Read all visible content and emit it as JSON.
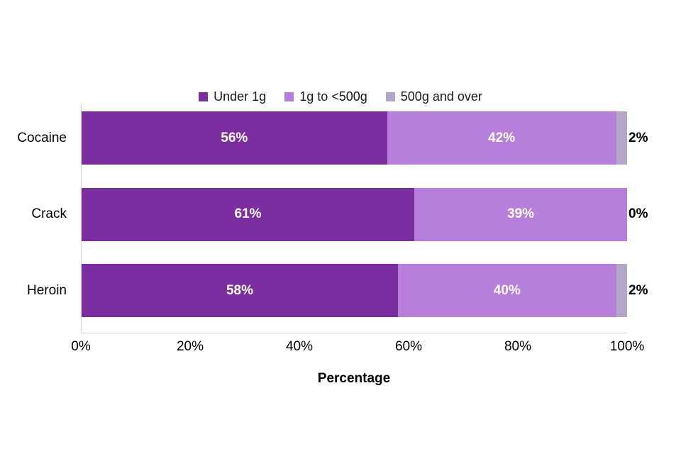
{
  "chart_data": {
    "type": "bar",
    "orientation": "horizontal",
    "stacked": true,
    "title": "",
    "categories": [
      "Cocaine",
      "Crack",
      "Heroin"
    ],
    "series": [
      {
        "name": "Under 1g",
        "color": "#7C2DA0",
        "values": [
          56,
          61,
          58
        ]
      },
      {
        "name": "1g to <500g",
        "color": "#B77FDB",
        "values": [
          42,
          39,
          40
        ]
      },
      {
        "name": "500g and over",
        "color": "#B3A6C7",
        "values": [
          2,
          0,
          2
        ]
      }
    ],
    "value_suffix": "%",
    "xlabel": "Percentage",
    "ylabel": "",
    "x_ticks": [
      "0%",
      "20%",
      "40%",
      "60%",
      "80%",
      "100%"
    ],
    "xlim": [
      0,
      100
    ],
    "legend_position": "top",
    "grid": false,
    "axis_color": "#D6D6D6",
    "inside_label_color": "#FFFFFF",
    "outside_label_color": "#000000",
    "background_color": "#FFFFFF"
  }
}
